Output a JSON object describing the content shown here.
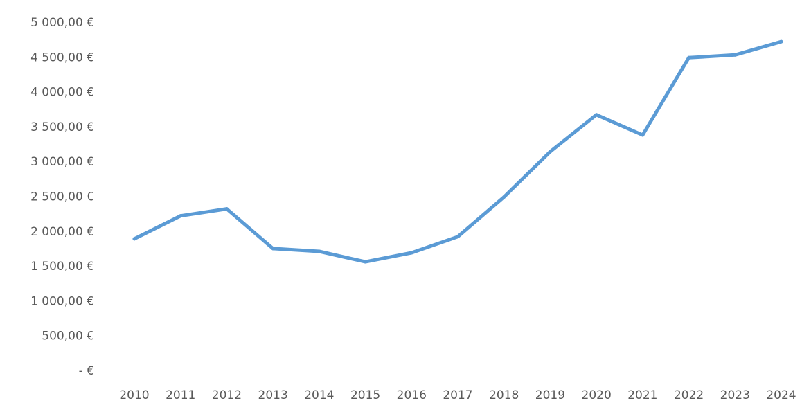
{
  "chart_data": {
    "type": "line",
    "categories": [
      "2010",
      "2011",
      "2012",
      "2013",
      "2014",
      "2015",
      "2016",
      "2017",
      "2018",
      "2019",
      "2020",
      "2021",
      "2022",
      "2023",
      "2024"
    ],
    "series": [
      {
        "values": [
          1900,
          2230,
          2330,
          1760,
          1720,
          1570,
          1700,
          1930,
          2500,
          3150,
          3680,
          3390,
          4500,
          4540,
          4730
        ]
      }
    ],
    "y_tick_values": [
      0,
      500,
      1000,
      1500,
      2000,
      2500,
      3000,
      3500,
      4000,
      4500,
      5000
    ],
    "y_tick_labels": [
      "-   €",
      "500,00 €",
      "1 000,00 €",
      "1 500,00 €",
      "2 000,00 €",
      "2 500,00 €",
      "3 000,00 €",
      "3 500,00 €",
      "4 000,00 €",
      "4 500,00 €",
      "5 000,00 €"
    ],
    "ylim": [
      0,
      5000
    ],
    "grid": false,
    "legend": "none",
    "line_color": "#5b9bd5"
  }
}
